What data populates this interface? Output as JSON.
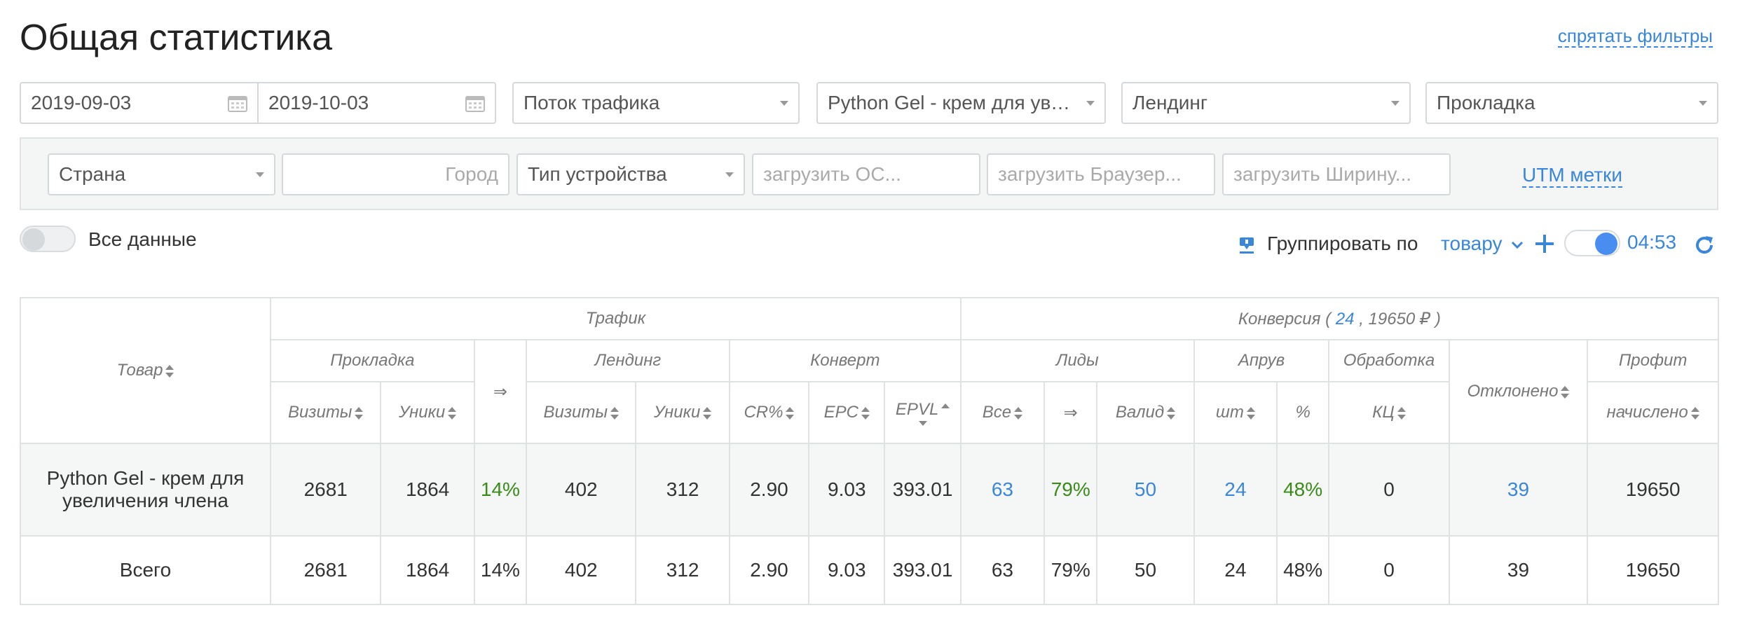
{
  "page": {
    "title": "Общая статистика",
    "hide_filters": "спрятать фильтры"
  },
  "filters": {
    "date_from": "2019-09-03",
    "date_to": "2019-10-03",
    "traffic_stream": "Поток трафика",
    "product": "Python Gel - крем для увел...",
    "landing": "Лендинг",
    "prelanding": "Прокладка",
    "country": "Страна",
    "city_placeholder": "Город",
    "device_type": "Тип устройства",
    "os_placeholder": "загрузить ОС...",
    "browser_placeholder": "загрузить Браузер...",
    "width_placeholder": "загрузить Ширину...",
    "utm_label": "UTM метки"
  },
  "controls": {
    "all_data_label": "Все данные",
    "group_by_label": "Группировать по",
    "group_by_value": "товару",
    "timer": "04:53"
  },
  "table": {
    "groups": {
      "product": "Товар",
      "traffic": "Трафик",
      "conversion_prefix": "Конверсия (",
      "conversion_count": "24",
      "conversion_suffix": ", 19650 ₽ )"
    },
    "subgroups": {
      "prelanding": "Прокладка",
      "arrow": "⇒",
      "landing": "Лендинг",
      "convert": "Конверт",
      "leads": "Лиды",
      "approve": "Апрув",
      "processing": "Обработка",
      "rejected": "Отклонено",
      "profit": "Профит"
    },
    "columns": {
      "pre_visits": "Визиты",
      "pre_uniques": "Уники",
      "land_visits": "Визиты",
      "land_uniques": "Уники",
      "cr": "CR%",
      "epc": "EPC",
      "epvl": "EPVL",
      "leads_all": "Все",
      "leads_arrow": "⇒",
      "leads_valid": "Валид",
      "approve_pcs": "шт",
      "approve_pct": "%",
      "processing_cc": "КЦ",
      "profit_accrued": "начислено"
    },
    "rows": [
      {
        "product": "Python Gel - крем для увеличения члена",
        "pre_visits": "2681",
        "pre_uniques": "1864",
        "ctr": "14%",
        "land_visits": "402",
        "land_uniques": "312",
        "cr": "2.90",
        "epc": "9.03",
        "epvl": "393.01",
        "leads_all": "63",
        "leads_pct": "79%",
        "leads_valid": "50",
        "approve_pcs": "24",
        "approve_pct": "48%",
        "processing": "0",
        "rejected": "39",
        "profit": "19650"
      },
      {
        "product": "Всего",
        "pre_visits": "2681",
        "pre_uniques": "1864",
        "ctr": "14%",
        "land_visits": "402",
        "land_uniques": "312",
        "cr": "2.90",
        "epc": "9.03",
        "epvl": "393.01",
        "leads_all": "63",
        "leads_pct": "79%",
        "leads_valid": "50",
        "approve_pcs": "24",
        "approve_pct": "48%",
        "processing": "0",
        "rejected": "39",
        "profit": "19650"
      }
    ]
  },
  "colors": {
    "accent_blue": "#3a86d8",
    "positive_green": "#3a8a1a",
    "toggle_on": "#4a8df0"
  }
}
